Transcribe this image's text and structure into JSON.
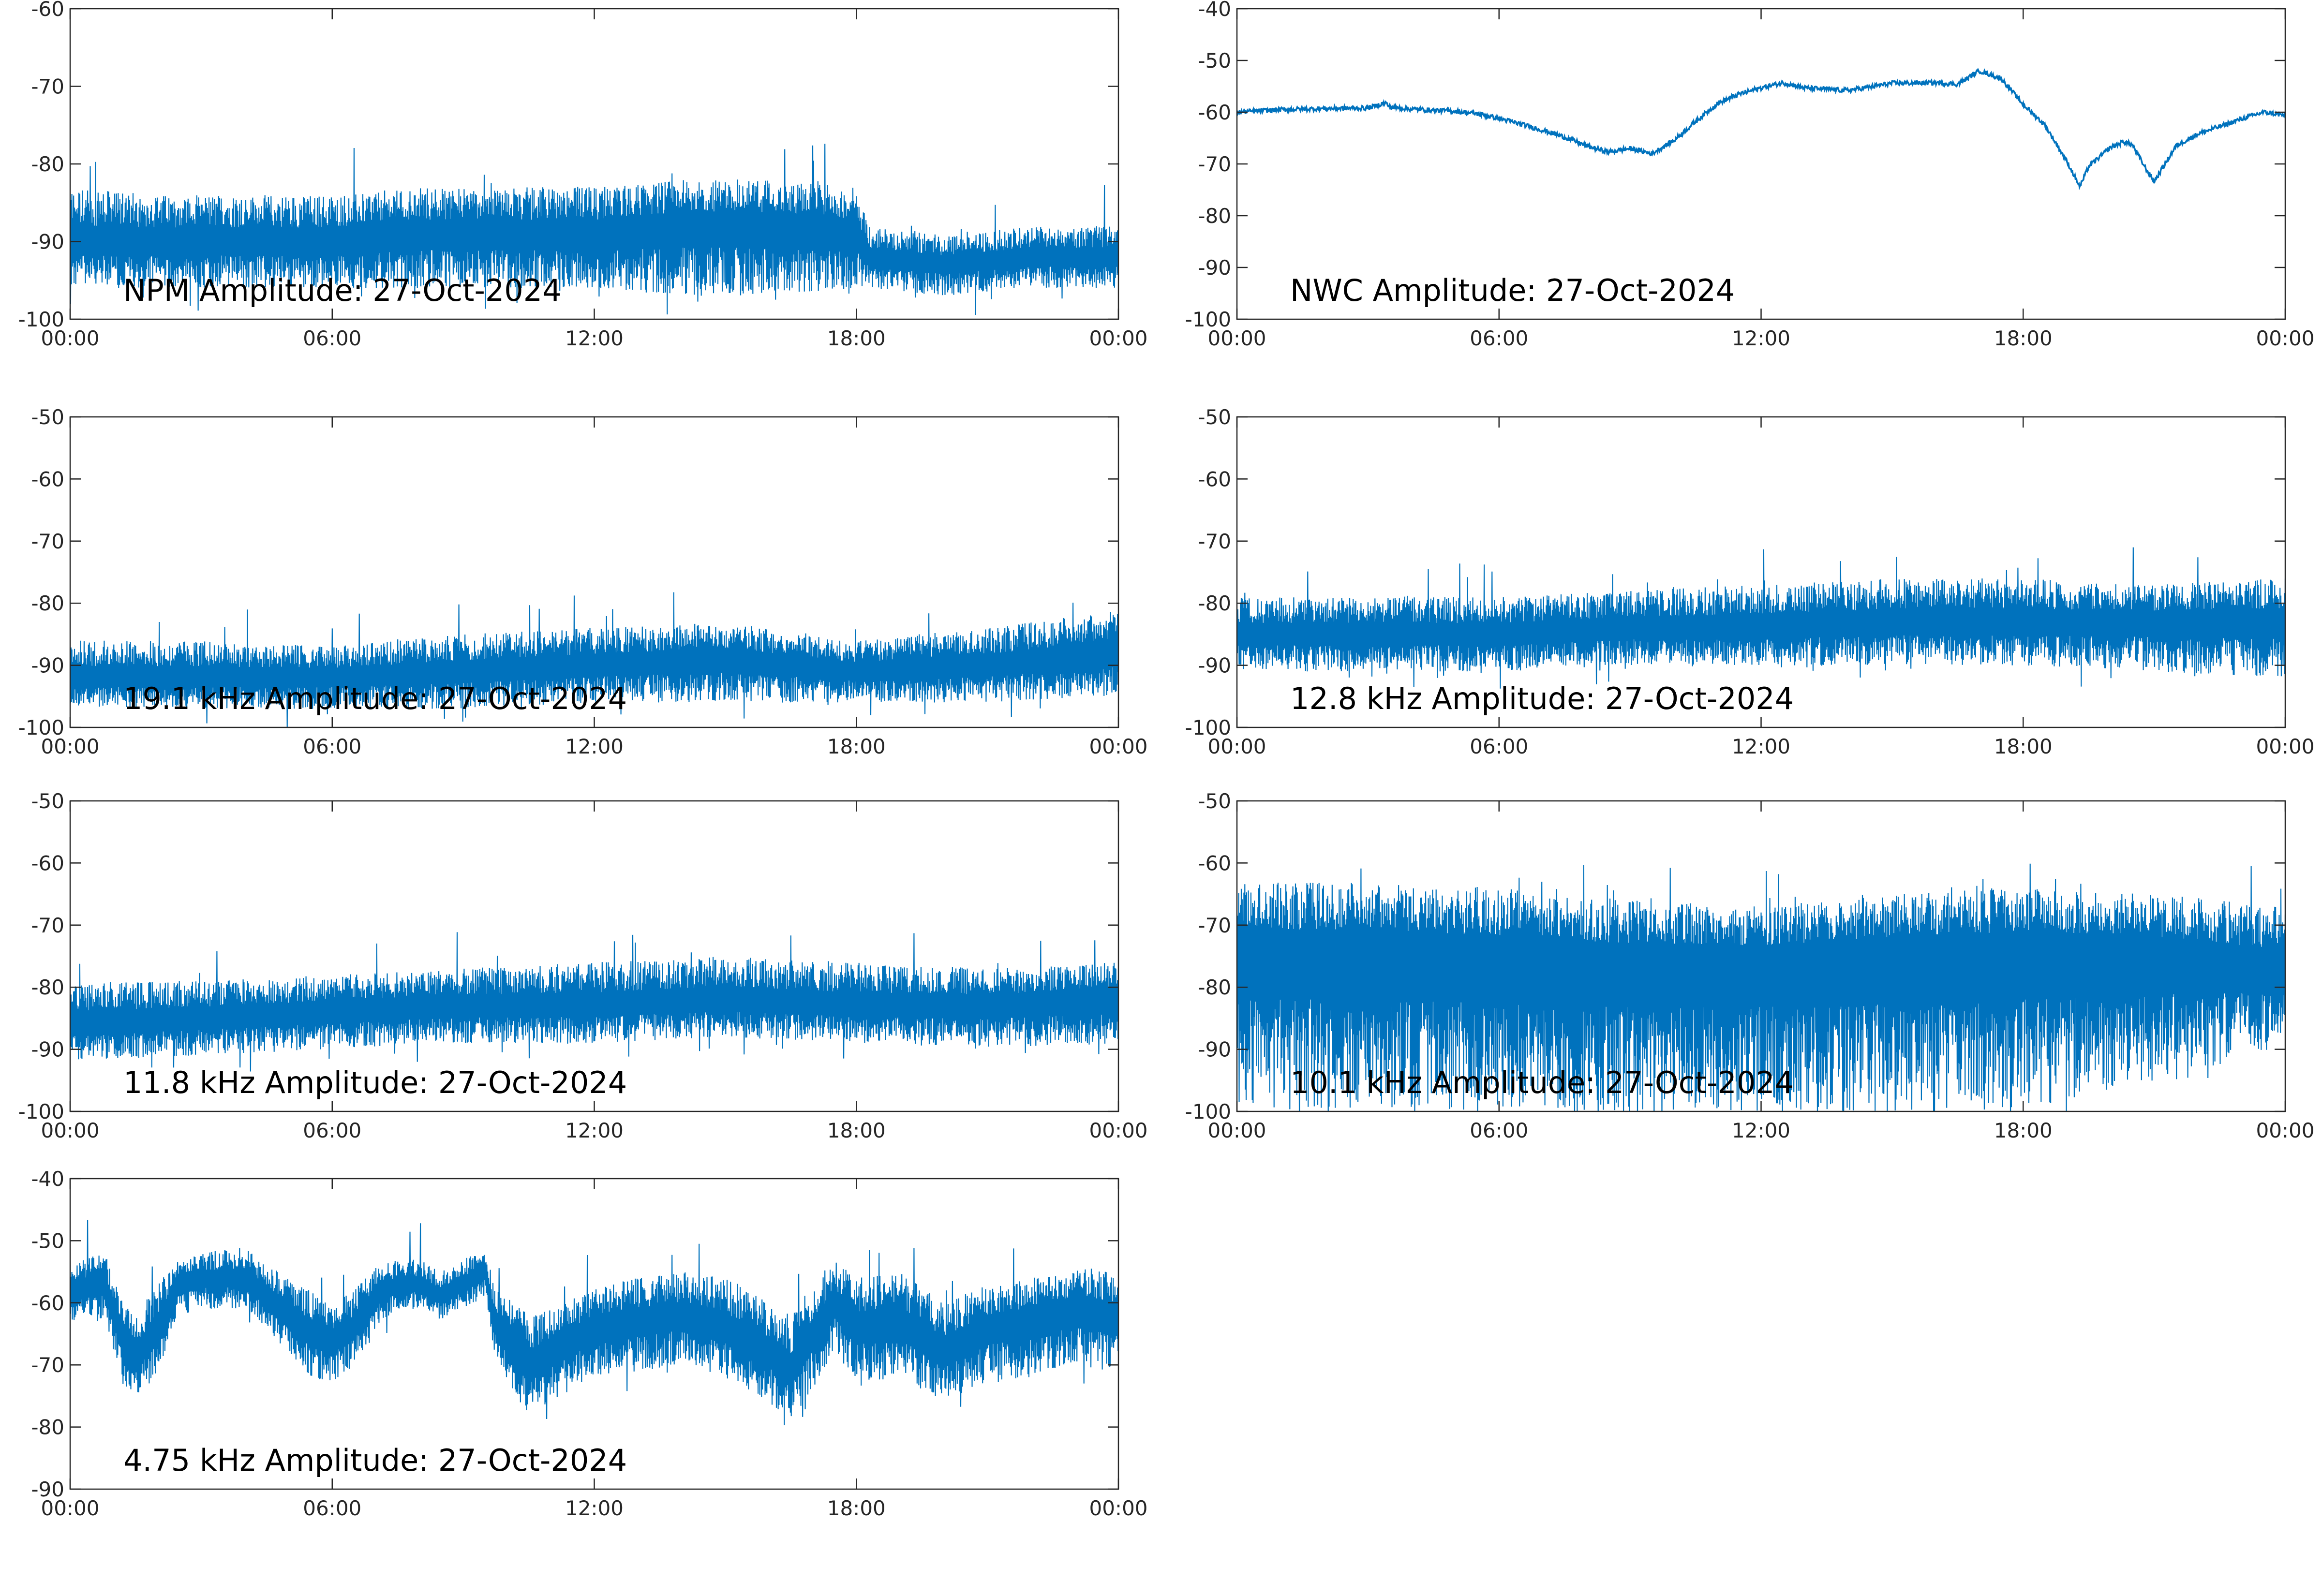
{
  "colors": {
    "series": "#0072bd",
    "axis": "#262626",
    "background": "#ffffff"
  },
  "x_tick_labels": [
    "00:00",
    "06:00",
    "12:00",
    "18:00",
    "00:00"
  ],
  "chart_data": [
    {
      "type": "line",
      "title": "NPM Amplitude: 27-Oct-2024",
      "xlabel": "",
      "ylabel": "",
      "xlim_hours": [
        0,
        24
      ],
      "ylim": [
        -100,
        -60
      ],
      "yticks": [
        "-60",
        "-70",
        "-80",
        "-90",
        "-100"
      ],
      "grid": false,
      "series": [
        {
          "x_hours": [
            0,
            2,
            4,
            6,
            8,
            10,
            12,
            14,
            16,
            18,
            18.3,
            20,
            22,
            24
          ],
          "y": [
            -90,
            -90,
            -90,
            -90,
            -89,
            -89,
            -89,
            -88,
            -88,
            -89,
            -92,
            -93,
            -92,
            -92
          ],
          "band_low": [
            -96,
            -96,
            -96,
            -96,
            -96,
            -96,
            -96,
            -97,
            -97,
            -96,
            -96,
            -97,
            -96,
            -96
          ],
          "band_high": [
            -83,
            -84,
            -84,
            -84,
            -83,
            -83,
            -83,
            -82,
            -82,
            -83,
            -88,
            -89,
            -88,
            -88
          ]
        }
      ]
    },
    {
      "type": "line",
      "title": "NWC Amplitude: 27-Oct-2024",
      "xlabel": "",
      "ylabel": "",
      "xlim_hours": [
        0,
        24
      ],
      "ylim": [
        -100,
        -40
      ],
      "yticks": [
        "-40",
        "-50",
        "-60",
        "-70",
        "-80",
        "-90",
        "-100"
      ],
      "grid": false,
      "series": [
        {
          "x_hours": [
            0,
            1,
            2,
            3,
            3.4,
            3.5,
            4,
            5,
            5.5,
            6,
            6.5,
            7,
            7.5,
            8,
            8.5,
            9,
            9.5,
            10,
            10.5,
            11,
            11.5,
            12,
            12.5,
            13,
            14,
            15,
            16,
            16.5,
            17,
            17.5,
            18,
            18.5,
            19,
            19.3,
            19.5,
            20,
            20.3,
            20.5,
            20.8,
            21,
            21.5,
            22,
            23,
            23.5,
            24
          ],
          "y": [
            -60,
            -59.5,
            -59.3,
            -59.2,
            -58.2,
            -59,
            -59.4,
            -59.8,
            -60.3,
            -61.2,
            -62.3,
            -63.5,
            -64.8,
            -66.5,
            -67.7,
            -67,
            -68,
            -65.5,
            -61.8,
            -58.3,
            -56.5,
            -55.3,
            -54.3,
            -55.3,
            -55.8,
            -54.4,
            -54.3,
            -54.6,
            -52,
            -53.5,
            -58.5,
            -62.5,
            -69.5,
            -74.4,
            -70.5,
            -66.8,
            -65.7,
            -66.3,
            -70.8,
            -73.4,
            -66.5,
            -64.2,
            -61.3,
            -60,
            -60.6
          ]
        }
      ]
    },
    {
      "type": "line",
      "title": "19.1 kHz Amplitude: 27-Oct-2024",
      "xlabel": "",
      "ylabel": "",
      "xlim_hours": [
        0,
        24
      ],
      "ylim": [
        -100,
        -50
      ],
      "yticks": [
        "-50",
        "-60",
        "-70",
        "-80",
        "-90",
        "-100"
      ],
      "grid": false,
      "series": [
        {
          "x_hours": [
            0,
            3,
            6,
            9,
            12,
            15,
            18,
            21,
            24
          ],
          "y": [
            -92,
            -92,
            -92,
            -91,
            -90,
            -89,
            -91,
            -90,
            -88
          ],
          "band_low": [
            -97,
            -97,
            -97,
            -97,
            -96,
            -96,
            -96,
            -96,
            -95
          ],
          "band_high": [
            -86,
            -86,
            -87,
            -85,
            -84,
            -83,
            -86,
            -84,
            -81
          ]
        }
      ]
    },
    {
      "type": "line",
      "title": "12.8 kHz Amplitude: 27-Oct-2024",
      "xlabel": "",
      "ylabel": "",
      "xlim_hours": [
        0,
        24
      ],
      "ylim": [
        -100,
        -50
      ],
      "yticks": [
        "-50",
        "-60",
        "-70",
        "-80",
        "-90",
        "-100"
      ],
      "grid": false,
      "series": [
        {
          "x_hours": [
            0,
            3,
            6,
            9,
            12,
            15,
            18,
            21,
            24
          ],
          "y": [
            -85,
            -85,
            -85,
            -84,
            -84,
            -83,
            -83,
            -83,
            -83
          ],
          "band_low": [
            -91,
            -91,
            -91,
            -90,
            -90,
            -90,
            -90,
            -91,
            -92
          ],
          "band_high": [
            -79,
            -79,
            -79,
            -78,
            -77,
            -76,
            -76,
            -77,
            -76
          ]
        }
      ]
    },
    {
      "type": "line",
      "title": "11.8 kHz Amplitude: 27-Oct-2024",
      "xlabel": "",
      "ylabel": "",
      "xlim_hours": [
        0,
        24
      ],
      "ylim": [
        -100,
        -50
      ],
      "yticks": [
        "-50",
        "-60",
        "-70",
        "-80",
        "-90",
        "-100"
      ],
      "grid": false,
      "series": [
        {
          "x_hours": [
            0,
            3,
            6,
            9,
            12,
            15,
            18,
            21,
            24
          ],
          "y": [
            -86,
            -85,
            -84,
            -83,
            -83,
            -82,
            -83,
            -83,
            -82
          ],
          "band_low": [
            -92,
            -91,
            -90,
            -89,
            -89,
            -88,
            -89,
            -90,
            -89
          ],
          "band_high": [
            -79,
            -79,
            -78,
            -77,
            -76,
            -75,
            -76,
            -77,
            -76
          ]
        }
      ]
    },
    {
      "type": "line",
      "title": "10.1 kHz Amplitude: 27-Oct-2024",
      "xlabel": "",
      "ylabel": "",
      "xlim_hours": [
        0,
        24
      ],
      "ylim": [
        -100,
        -50
      ],
      "yticks": [
        "-50",
        "-60",
        "-70",
        "-80",
        "-90",
        "-100"
      ],
      "grid": false,
      "series": [
        {
          "x_hours": [
            0,
            3,
            6,
            9,
            12,
            15,
            18,
            21,
            24
          ],
          "y": [
            -74,
            -74,
            -75,
            -76,
            -76,
            -75,
            -74,
            -75,
            -77
          ],
          "band_low": [
            -100,
            -100,
            -100,
            -100,
            -100,
            -100,
            -100,
            -95,
            -90
          ],
          "band_high": [
            -63,
            -63,
            -64,
            -66,
            -67,
            -65,
            -64,
            -65,
            -67
          ]
        }
      ]
    },
    {
      "type": "line",
      "title": "4.75 kHz Amplitude: 27-Oct-2024",
      "xlabel": "",
      "ylabel": "",
      "xlim_hours": [
        0,
        24
      ],
      "ylim": [
        -90,
        -40
      ],
      "yticks": [
        "-40",
        "-50",
        "-60",
        "-70",
        "-80",
        "-90"
      ],
      "grid": false,
      "series": [
        {
          "x_hours": [
            0,
            0.8,
            1.2,
            1.5,
            2,
            2.5,
            3,
            4,
            5,
            5.5,
            6,
            6.5,
            7,
            7.5,
            8,
            8.5,
            9,
            9.5,
            9.7,
            10,
            10.5,
            11,
            12,
            13,
            14,
            15,
            16,
            16.5,
            17,
            17.5,
            18,
            19,
            20,
            21,
            22,
            23,
            24
          ],
          "y": [
            -58,
            -57,
            -65,
            -69,
            -64,
            -57,
            -56,
            -56,
            -62,
            -65,
            -66,
            -64,
            -59,
            -57,
            -57,
            -59,
            -57,
            -55,
            -63,
            -65,
            -70,
            -68,
            -64,
            -63,
            -62,
            -64,
            -68,
            -71,
            -65,
            -60,
            -64,
            -63,
            -68,
            -64,
            -63,
            -61,
            -62
          ],
          "band_low": [
            -63,
            -63,
            -73,
            -75,
            -71,
            -62,
            -61,
            -61,
            -68,
            -72,
            -73,
            -70,
            -64,
            -61,
            -61,
            -63,
            -61,
            -59,
            -68,
            -73,
            -78,
            -76,
            -72,
            -71,
            -70,
            -72,
            -76,
            -79,
            -74,
            -68,
            -73,
            -72,
            -76,
            -73,
            -72,
            -70,
            -72
          ],
          "band_high": [
            -53,
            -52,
            -60,
            -62,
            -57,
            -53,
            -52,
            -51,
            -56,
            -58,
            -60,
            -58,
            -54,
            -53,
            -53,
            -55,
            -53,
            -51,
            -57,
            -58,
            -62,
            -61,
            -57,
            -56,
            -55,
            -56,
            -60,
            -62,
            -57,
            -53,
            -56,
            -55,
            -60,
            -57,
            -56,
            -54,
            -55
          ]
        }
      ]
    }
  ]
}
